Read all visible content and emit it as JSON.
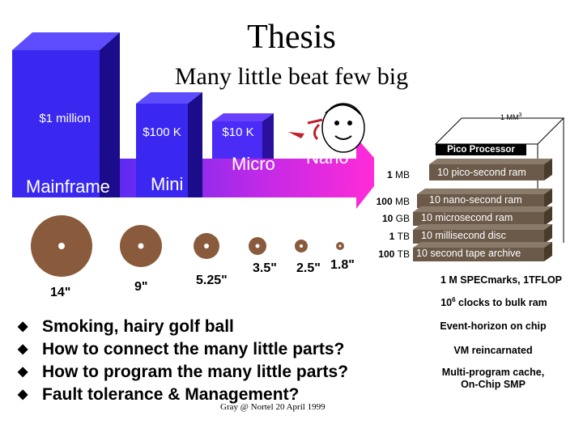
{
  "slide": {
    "title": "Thesis",
    "subtitle": "Many little beat few big"
  },
  "prices": {
    "million": "$1 million",
    "hundred_k": "$100 K",
    "ten_k": "$10 K"
  },
  "eras": {
    "mainframe": "Mainframe",
    "mini": "Mini",
    "micro": "Micro",
    "nano": "Nano"
  },
  "pico": {
    "title": "Pico Processor",
    "scale": "1 MM",
    "scale_exp": "3",
    "layers": [
      {
        "label": "10 pico-second ram"
      },
      {
        "label": "10 nano-second ram"
      },
      {
        "label": "10 microsecond ram"
      },
      {
        "label": "10 millisecond disc"
      },
      {
        "label": "10 second tape archive"
      }
    ],
    "sizes": [
      {
        "num": "1",
        "unit": "MB"
      },
      {
        "num": "100",
        "unit": "MB"
      },
      {
        "num": "10",
        "unit": "GB"
      },
      {
        "num": "1",
        "unit": "TB"
      },
      {
        "num": "100",
        "unit": "TB"
      }
    ],
    "spec": "1 M SPECmarks, 1TFLOP",
    "clocks_base": "10",
    "clocks_exp": "6",
    "clocks_rest": " clocks to bulk ram",
    "notes": [
      "Event-horizon on chip",
      "VM reincarnated",
      "Multi-program cache,",
      "On-Chip SMP"
    ]
  },
  "disks": [
    {
      "label": "14\""
    },
    {
      "label": "9\""
    },
    {
      "label": "5.25\""
    },
    {
      "label": "3.5\""
    },
    {
      "label": "2.5\""
    },
    {
      "label": "1.8\""
    }
  ],
  "bullets": [
    "Smoking, hairy golf ball",
    "How to connect the many little parts?",
    "How to program the many little parts?",
    "Fault tolerance & Management?"
  ],
  "credit": "Gray @ Nortel 20 April 1999",
  "colors": {
    "blue_dark": "#1f0fb0",
    "blue": "#3d2bff",
    "magenta": "#ff2bd8",
    "disk_outer": "#8a5a3c",
    "disk_inner": "#6b4226",
    "layer": "#6b5a4a"
  }
}
